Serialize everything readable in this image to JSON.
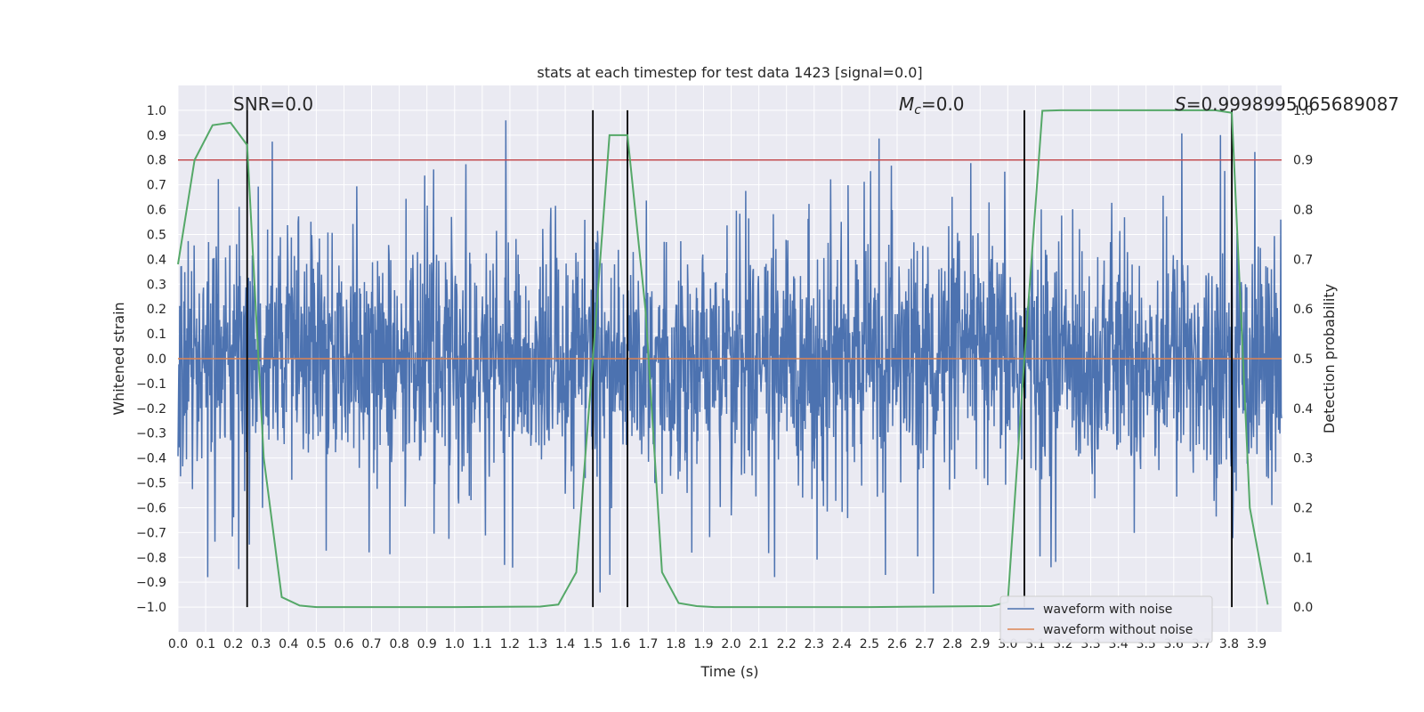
{
  "chart_data": {
    "type": "line",
    "title": "stats at each timestep for test data 1423 [signal=0.0]",
    "xlabel": "Time (s)",
    "ylabel": "Whitened strain",
    "y2label": "Detection probability",
    "xlim": [
      0.0,
      3.99
    ],
    "ylim": [
      -1.1,
      1.1
    ],
    "y2lim": [
      -0.05,
      1.05
    ],
    "xticks": [
      "0.0",
      "0.1",
      "0.2",
      "0.3",
      "0.4",
      "0.5",
      "0.6",
      "0.7",
      "0.8",
      "0.9",
      "1.0",
      "1.1",
      "1.2",
      "1.3",
      "1.4",
      "1.5",
      "1.6",
      "1.7",
      "1.8",
      "1.9",
      "2.0",
      "2.1",
      "2.2",
      "2.3",
      "2.4",
      "2.5",
      "2.6",
      "2.7",
      "2.8",
      "2.9",
      "3.0",
      "3.1",
      "3.2",
      "3.3",
      "3.4",
      "3.5",
      "3.6",
      "3.7",
      "3.8",
      "3.9"
    ],
    "yticks": [
      "1.0",
      "0.9",
      "0.8",
      "0.7",
      "0.6",
      "0.5",
      "0.4",
      "0.3",
      "0.2",
      "0.1",
      "0.0",
      "−0.1",
      "−0.2",
      "−0.3",
      "−0.4",
      "−0.5",
      "−0.6",
      "−0.7",
      "−0.8",
      "−0.9",
      "−1.0"
    ],
    "y2ticks": [
      "1.0",
      "0.9",
      "0.8",
      "0.7",
      "0.6",
      "0.5",
      "0.4",
      "0.3",
      "0.2",
      "0.1",
      "0.0"
    ],
    "annotations": {
      "snr": "SNR=0.0",
      "mc_symbol": "M",
      "mc_sub": "c",
      "mc_value": "=0.0",
      "s_symbol": "S",
      "s_value": "=0.9998995065689087"
    },
    "threshold": 0.8,
    "vlines": [
      0.25,
      1.5,
      1.625,
      3.06,
      3.81
    ],
    "series": [
      {
        "name": "waveform with noise",
        "color": "#4c72b0",
        "description": "dense noisy whitened strain, roughly within -0.5..0.5 with spikes to about +/-1.0"
      },
      {
        "name": "waveform without noise",
        "color": "#dd8452",
        "values": "0.0 for all t"
      },
      {
        "name": "detection probability",
        "axis": "right",
        "color": "#55a868",
        "x": [
          0.0,
          0.06,
          0.125,
          0.19,
          0.25,
          0.31,
          0.375,
          0.44,
          0.5,
          1.0,
          1.31,
          1.375,
          1.44,
          1.5,
          1.56,
          1.625,
          1.69,
          1.75,
          1.81,
          1.875,
          1.94,
          2.5,
          2.94,
          3.0,
          3.06,
          3.125,
          3.19,
          3.5,
          3.69,
          3.75,
          3.81,
          3.875,
          3.94
        ],
        "y": [
          0.69,
          0.9,
          0.97,
          0.975,
          0.93,
          0.3,
          0.02,
          0.003,
          0.0,
          0.0,
          0.001,
          0.005,
          0.07,
          0.5,
          0.95,
          0.95,
          0.6,
          0.07,
          0.008,
          0.002,
          0.0,
          0.0,
          0.002,
          0.01,
          0.5,
          0.999,
          1.0,
          1.0,
          1.0,
          1.0,
          0.995,
          0.2,
          0.005
        ]
      }
    ],
    "legend": [
      "waveform with noise",
      "waveform without noise"
    ],
    "legend_loc": "lower-right",
    "colors": {
      "background": "#eaeaf2",
      "grid": "#ffffff",
      "threshold": "#c44e52",
      "vline": "#000000"
    }
  }
}
